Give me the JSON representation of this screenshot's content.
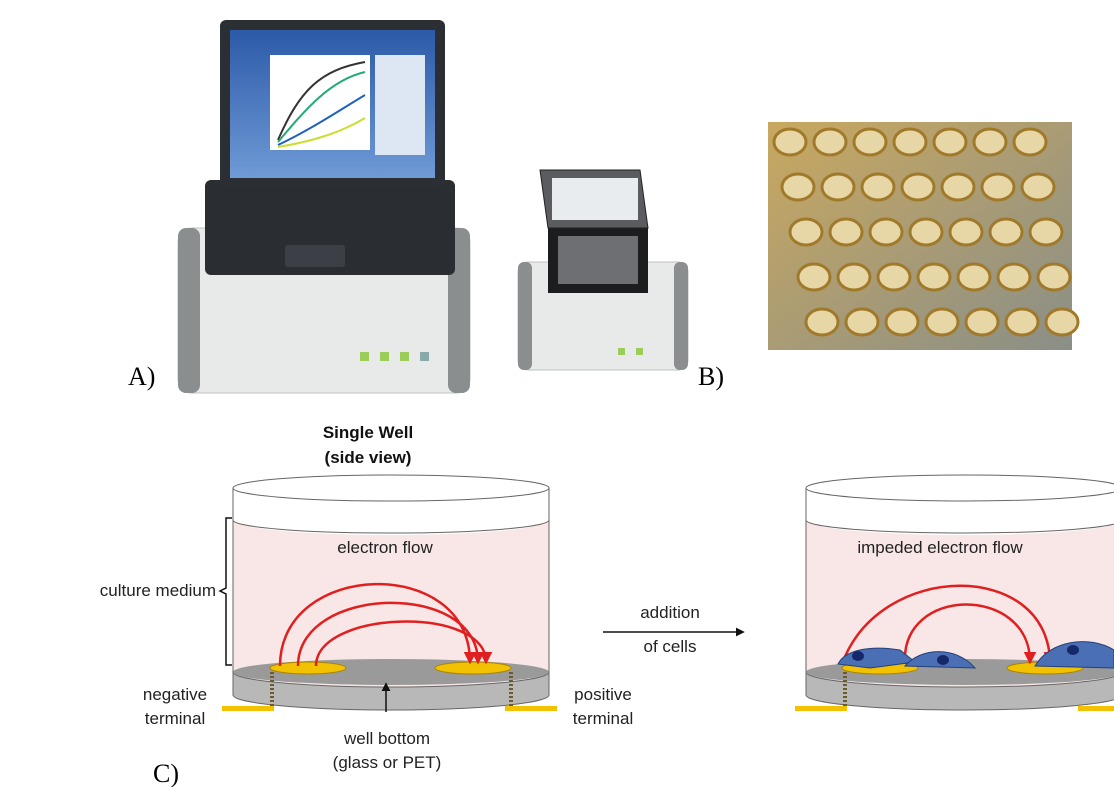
{
  "panels": {
    "a": {
      "label": "A)"
    },
    "b": {
      "label": "B)"
    },
    "c": {
      "label": "C)"
    }
  },
  "diagram": {
    "title": [
      "Single Well",
      "(side view)"
    ],
    "culture_medium": "culture medium",
    "electron_flow": "electron flow",
    "addition": [
      "addition",
      "of cells"
    ],
    "negative": [
      "negative",
      "terminal"
    ],
    "positive": [
      "positive",
      "terminal"
    ],
    "well_bottom": [
      "well bottom",
      "(glass or PET)"
    ],
    "impeded": "impeded electron flow"
  }
}
